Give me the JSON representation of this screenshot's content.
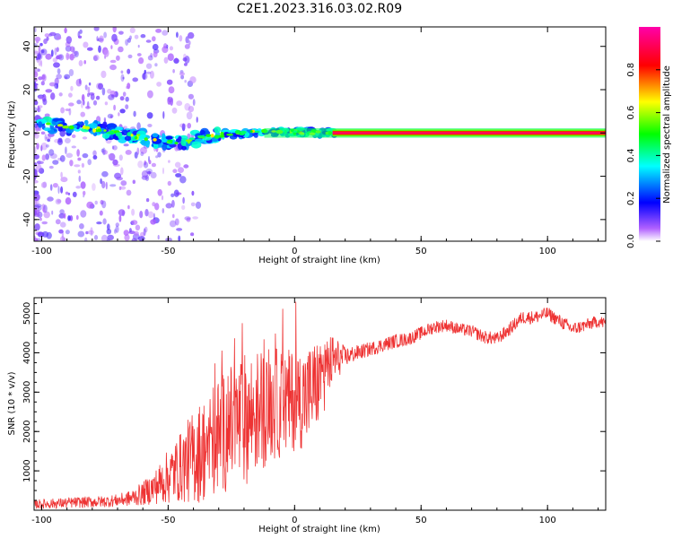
{
  "title": "C2E1.2023.316.03.02.R09",
  "chart_data": [
    {
      "type": "heatmap",
      "xlabel": "Height of straight line (km)",
      "ylabel": "Frequency (Hz)",
      "xlim": [
        -103,
        123
      ],
      "ylim": [
        -50,
        49
      ],
      "xticks": [
        -100,
        -50,
        0,
        50,
        100
      ],
      "xtick_labels": [
        "-100",
        "-50",
        "0",
        "50",
        "100"
      ],
      "yticks": [
        -40,
        -20,
        0,
        20,
        40
      ],
      "ytick_labels": [
        "-40",
        "-20",
        "0",
        "20",
        "40"
      ],
      "colorbar": {
        "label": "Normalized spectral amplitude",
        "range": [
          0,
          1
        ],
        "ticks": [
          0,
          0.2,
          0.4,
          0.6,
          0.8
        ],
        "tick_labels": [
          "0.0",
          "0.2",
          "0.4",
          "0.6",
          "0.8"
        ],
        "colors": [
          "#ffffff",
          "#8000ff",
          "#0000ff",
          "#00ffff",
          "#00ff00",
          "#ffff00",
          "#ff0000",
          "#ff00aa"
        ]
      },
      "signal_track": [
        {
          "x": -100,
          "y": 4
        },
        {
          "x": -90,
          "y": 3
        },
        {
          "x": -80,
          "y": 2
        },
        {
          "x": -70,
          "y": 0
        },
        {
          "x": -60,
          "y": -2
        },
        {
          "x": -50,
          "y": -4
        },
        {
          "x": -45,
          "y": -5
        },
        {
          "x": -40,
          "y": -3
        },
        {
          "x": -30,
          "y": -1
        },
        {
          "x": -20,
          "y": 0
        },
        {
          "x": -10,
          "y": 0.5
        },
        {
          "x": 0,
          "y": 0.5
        },
        {
          "x": 10,
          "y": 0
        },
        {
          "x": 20,
          "y": 0
        },
        {
          "x": 123,
          "y": 0
        }
      ]
    },
    {
      "type": "line",
      "xlabel": "Height of straight line (km)",
      "ylabel": "SNR (10 * v/v)",
      "xlim": [
        -103,
        123
      ],
      "ylim": [
        0,
        5400
      ],
      "xticks": [
        -100,
        -50,
        0,
        50,
        100
      ],
      "xtick_labels": [
        "-100",
        "-50",
        "0",
        "50",
        "100"
      ],
      "yticks": [
        1000,
        2000,
        3000,
        4000,
        5000
      ],
      "ytick_labels": [
        "1000",
        "2000",
        "3000",
        "4000",
        "5000"
      ],
      "color": "#ee3333",
      "series": [
        {
          "name": "SNR",
          "x": [
            -103,
            -95,
            -85,
            -75,
            -70,
            -65,
            -60,
            -55,
            -50,
            -45,
            -40,
            -35,
            -30,
            -25,
            -20,
            -15,
            -10,
            -5,
            0,
            5,
            10,
            15,
            20,
            25,
            30,
            35,
            40,
            45,
            50,
            55,
            60,
            65,
            70,
            75,
            80,
            85,
            90,
            95,
            100,
            105,
            110,
            115,
            120,
            123
          ],
          "y": [
            150,
            170,
            200,
            220,
            250,
            300,
            420,
            600,
            850,
            1100,
            1350,
            1600,
            1900,
            2100,
            2300,
            2500,
            2700,
            2700,
            2800,
            2900,
            3300,
            3800,
            3900,
            4000,
            4100,
            4200,
            4300,
            4350,
            4500,
            4650,
            4700,
            4600,
            4550,
            4400,
            4350,
            4600,
            4900,
            4900,
            5000,
            4800,
            4600,
            4700,
            4800,
            4750
          ],
          "spread": [
            120,
            130,
            140,
            150,
            160,
            200,
            300,
            450,
            700,
            900,
            1200,
            1400,
            1500,
            1600,
            1700,
            1600,
            1500,
            1400,
            1300,
            1300,
            1100,
            700,
            250,
            200,
            180,
            180,
            180,
            170,
            170,
            170,
            160,
            160,
            160,
            170,
            170,
            170,
            170,
            170,
            170,
            170,
            170,
            160,
            160,
            160
          ]
        }
      ]
    }
  ]
}
